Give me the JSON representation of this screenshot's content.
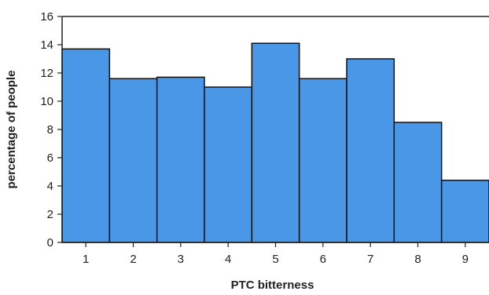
{
  "chart_data": {
    "type": "bar",
    "categories": [
      "1",
      "2",
      "3",
      "4",
      "5",
      "6",
      "7",
      "8",
      "9"
    ],
    "values": [
      13.7,
      11.6,
      11.7,
      11.0,
      14.1,
      11.6,
      13.0,
      8.5,
      4.4
    ],
    "title": "",
    "xlabel": "PTC bitterness",
    "ylabel": "percentage of people",
    "ylim": [
      0,
      16
    ],
    "yticks": [
      0,
      2,
      4,
      6,
      8,
      10,
      12,
      14,
      16
    ],
    "grid": false,
    "bar_color": "#4a97e8",
    "bar_edge_color": "#111111"
  }
}
